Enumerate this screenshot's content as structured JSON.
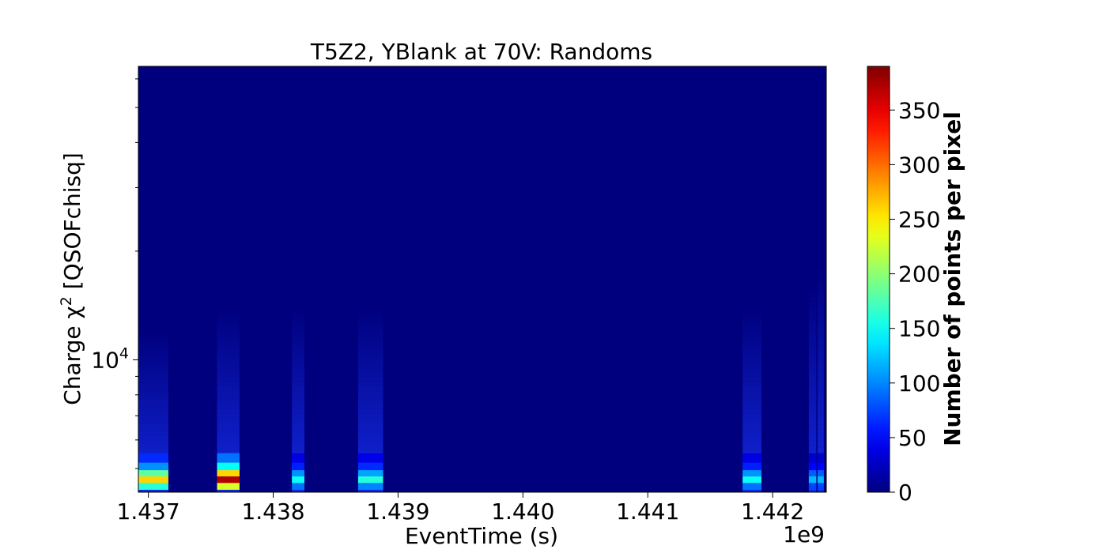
{
  "chart_data": {
    "type": "heatmap",
    "title": "T5Z2, YBlank at 70V: Randoms",
    "xlabel": "EventTime (s)",
    "ylabel": "Charge χ² [QSOFchisq]",
    "x_offset_label": "1e9",
    "x_multiplier": 1000000000,
    "xlim": [
      1.43692,
      1.44243
    ],
    "x_ticks": [
      1.437,
      1.438,
      1.439,
      1.44,
      1.441,
      1.442
    ],
    "x_tick_labels": [
      "1.437",
      "1.438",
      "1.439",
      "1.440",
      "1.441",
      "1.442"
    ],
    "y_scale": "log",
    "ylim": [
      4300,
      65000
    ],
    "y_major_ticks": [
      10000
    ],
    "y_major_tick_labels": [
      "10",
      "4"
    ],
    "y_minor_ticks": [
      5000,
      6000,
      7000,
      8000,
      9000,
      20000,
      30000,
      40000,
      50000,
      60000
    ],
    "grid": false,
    "colormap": "jet",
    "background_color": "#00007f",
    "colorbar": {
      "label": "Number of points per pixel",
      "range": [
        0,
        390
      ],
      "ticks": [
        0,
        50,
        100,
        150,
        200,
        250,
        300,
        350
      ],
      "tick_labels": [
        "0",
        "50",
        "100",
        "150",
        "200",
        "250",
        "300",
        "350"
      ]
    },
    "clusters": [
      {
        "x_start": 1.43692,
        "x_end": 1.43716,
        "peak_count": 260,
        "extent_y": 12000
      },
      {
        "x_start": 1.43755,
        "x_end": 1.43773,
        "peak_count": 370,
        "extent_y": 14000
      },
      {
        "x_start": 1.43815,
        "x_end": 1.43825,
        "peak_count": 150,
        "extent_y": 14000
      },
      {
        "x_start": 1.43868,
        "x_end": 1.43888,
        "peak_count": 160,
        "extent_y": 14000
      },
      {
        "x_start": 1.44176,
        "x_end": 1.44191,
        "peak_count": 150,
        "extent_y": 14000
      },
      {
        "x_start": 1.44229,
        "x_end": 1.44235,
        "peak_count": 120,
        "extent_y": 16000
      },
      {
        "x_start": 1.44236,
        "x_end": 1.44241,
        "peak_count": 120,
        "extent_y": 18000
      }
    ],
    "dense_rows": [
      {
        "y": 4500,
        "relative_count": 0.62
      },
      {
        "y": 4700,
        "relative_count": 1.0
      },
      {
        "y": 4900,
        "relative_count": 0.7
      },
      {
        "y": 5100,
        "relative_count": 0.4
      },
      {
        "y": 5350,
        "relative_count": 0.25
      }
    ]
  }
}
